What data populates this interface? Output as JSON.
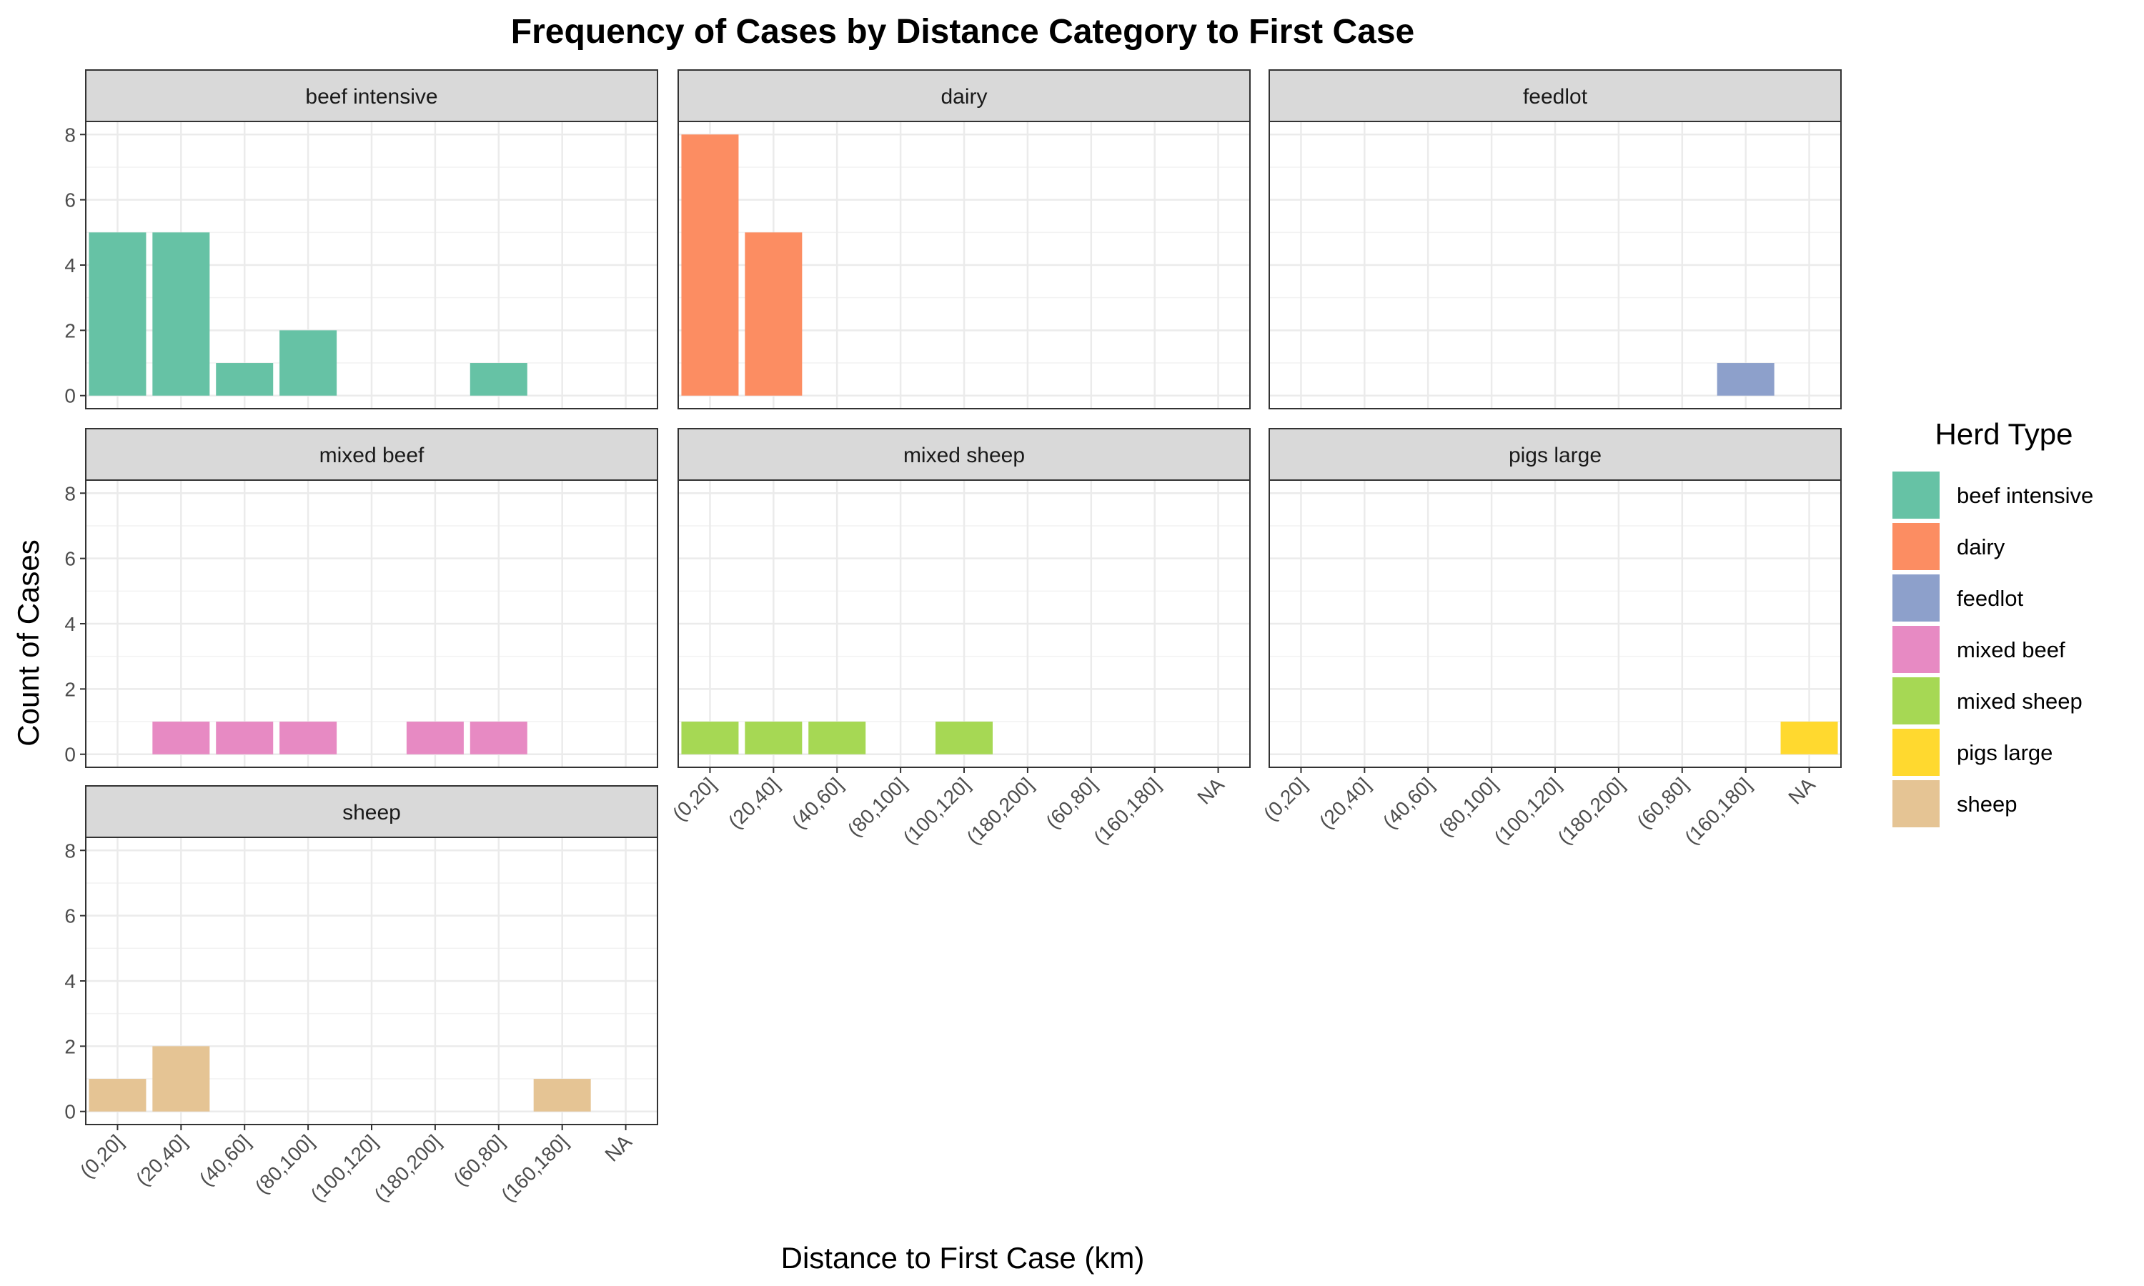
{
  "chart_data": {
    "type": "bar",
    "title": "Frequency of Cases by Distance Category to First Case",
    "xlabel": "Distance to First Case (km)",
    "ylabel": "Count of Cases",
    "categories": [
      "(0,20]",
      "(20,40]",
      "(40,60]",
      "(80,100]",
      "(100,120]",
      "(180,200]",
      "(60,80]",
      "(160,180]",
      "NA"
    ],
    "y_ticks": [
      0,
      2,
      4,
      6,
      8
    ],
    "ylim": [
      -0.4,
      8.4
    ],
    "grid": true,
    "legend": {
      "title": "Herd Type",
      "position": "right",
      "entries": [
        "beef intensive",
        "dairy",
        "feedlot",
        "mixed beef",
        "mixed sheep",
        "pigs large",
        "sheep"
      ]
    },
    "colors": {
      "beef intensive": "#66C2A5",
      "dairy": "#FC8D62",
      "feedlot": "#8DA0CB",
      "mixed beef": "#E78AC3",
      "mixed sheep": "#A6D854",
      "pigs large": "#FFD92F",
      "sheep": "#E5C494"
    },
    "facets": [
      {
        "name": "beef intensive",
        "values": [
          5,
          5,
          1,
          2,
          0,
          0,
          1,
          0,
          0
        ]
      },
      {
        "name": "dairy",
        "values": [
          8,
          5,
          0,
          0,
          0,
          0,
          0,
          0,
          0
        ]
      },
      {
        "name": "feedlot",
        "values": [
          0,
          0,
          0,
          0,
          0,
          0,
          0,
          1,
          0
        ]
      },
      {
        "name": "mixed beef",
        "values": [
          0,
          1,
          1,
          1,
          0,
          1,
          1,
          0,
          0
        ]
      },
      {
        "name": "mixed sheep",
        "values": [
          1,
          1,
          1,
          0,
          1,
          0,
          0,
          0,
          0
        ]
      },
      {
        "name": "pigs large",
        "values": [
          0,
          0,
          0,
          0,
          0,
          0,
          0,
          0,
          1
        ]
      },
      {
        "name": "sheep",
        "values": [
          1,
          2,
          0,
          0,
          0,
          0,
          0,
          1,
          0
        ]
      }
    ]
  }
}
